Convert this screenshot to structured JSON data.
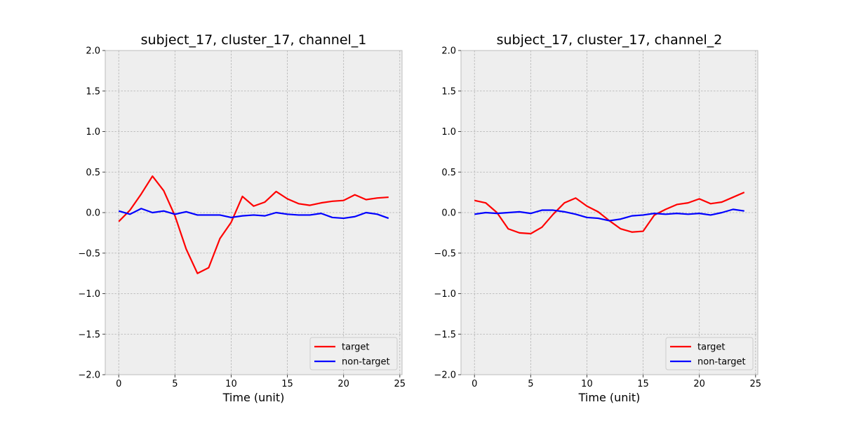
{
  "chart_data": [
    {
      "type": "line",
      "title": "subject_17, cluster_17, channel_1",
      "xlabel": "Time (unit)",
      "ylabel": "",
      "xlim": [
        -1.2,
        25.2
      ],
      "ylim": [
        -2.0,
        2.0
      ],
      "xticks": [
        0,
        5,
        10,
        15,
        20,
        25
      ],
      "xtick_labels": [
        "0",
        "5",
        "10",
        "15",
        "20",
        "25"
      ],
      "yticks": [
        2.0,
        1.5,
        1.0,
        0.5,
        0.0,
        -0.5,
        -1.0,
        -1.5,
        -2.0
      ],
      "ytick_labels": [
        "2.0",
        "1.5",
        "1.0",
        "0.5",
        "0.0",
        "−0.5",
        "−1.0",
        "−1.5",
        "−2.0"
      ],
      "grid": true,
      "legend_position": "lower-right",
      "x": [
        0,
        1,
        2,
        3,
        4,
        5,
        6,
        7,
        8,
        9,
        10,
        11,
        12,
        13,
        14,
        15,
        16,
        17,
        18,
        19,
        20,
        21,
        22,
        23,
        24
      ],
      "series": [
        {
          "name": "target",
          "color": "#ff0000",
          "values": [
            -0.11,
            0.03,
            0.23,
            0.45,
            0.27,
            -0.04,
            -0.45,
            -0.75,
            -0.68,
            -0.32,
            -0.12,
            0.2,
            0.08,
            0.13,
            0.26,
            0.17,
            0.11,
            0.09,
            0.12,
            0.14,
            0.15,
            0.22,
            0.16,
            0.18,
            0.19
          ]
        },
        {
          "name": "non-target",
          "color": "#0000ff",
          "values": [
            0.02,
            -0.02,
            0.05,
            0.0,
            0.02,
            -0.02,
            0.01,
            -0.03,
            -0.03,
            -0.03,
            -0.06,
            -0.04,
            -0.03,
            -0.04,
            0.0,
            -0.02,
            -0.03,
            -0.03,
            -0.01,
            -0.06,
            -0.07,
            -0.05,
            0.0,
            -0.02,
            -0.07
          ]
        }
      ]
    },
    {
      "type": "line",
      "title": "subject_17, cluster_17, channel_2",
      "xlabel": "Time (unit)",
      "ylabel": "",
      "xlim": [
        -1.2,
        25.2
      ],
      "ylim": [
        -2.0,
        2.0
      ],
      "xticks": [
        0,
        5,
        10,
        15,
        20,
        25
      ],
      "xtick_labels": [
        "0",
        "5",
        "10",
        "15",
        "20",
        "25"
      ],
      "yticks": [
        2.0,
        1.5,
        1.0,
        0.5,
        0.0,
        -0.5,
        -1.0,
        -1.5,
        -2.0
      ],
      "ytick_labels": [
        "2.0",
        "1.5",
        "1.0",
        "0.5",
        "0.0",
        "−0.5",
        "−1.0",
        "−1.5",
        "−2.0"
      ],
      "grid": true,
      "legend_position": "lower-right",
      "x": [
        0,
        1,
        2,
        3,
        4,
        5,
        6,
        7,
        8,
        9,
        10,
        11,
        12,
        13,
        14,
        15,
        16,
        17,
        18,
        19,
        20,
        21,
        22,
        23,
        24
      ],
      "series": [
        {
          "name": "target",
          "color": "#ff0000",
          "values": [
            0.15,
            0.12,
            0.0,
            -0.2,
            -0.25,
            -0.26,
            -0.18,
            -0.02,
            0.12,
            0.18,
            0.08,
            0.01,
            -0.1,
            -0.2,
            -0.24,
            -0.23,
            -0.03,
            0.04,
            0.1,
            0.12,
            0.17,
            0.11,
            0.13,
            0.19,
            0.25
          ]
        },
        {
          "name": "non-target",
          "color": "#0000ff",
          "values": [
            -0.02,
            0.0,
            -0.01,
            0.0,
            0.01,
            -0.01,
            0.03,
            0.03,
            0.01,
            -0.02,
            -0.06,
            -0.07,
            -0.1,
            -0.08,
            -0.04,
            -0.03,
            -0.01,
            -0.02,
            -0.01,
            -0.02,
            -0.01,
            -0.03,
            0.0,
            0.04,
            0.02
          ]
        }
      ]
    }
  ]
}
